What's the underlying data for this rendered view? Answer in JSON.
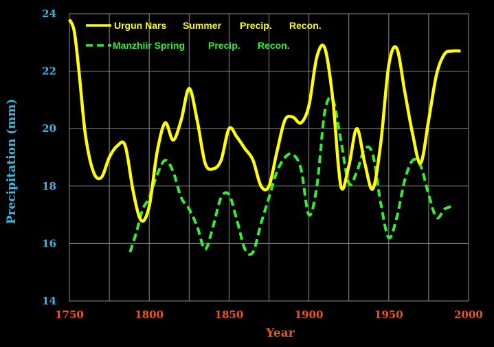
{
  "chart_data": {
    "type": "line",
    "xlabel": "Year",
    "ylabel": "Precipitation (mm)",
    "xlim": [
      1750,
      2000
    ],
    "ylim": [
      14,
      24
    ],
    "xticks": [
      1750,
      1800,
      1850,
      1900,
      1950,
      2000
    ],
    "yticks": [
      14,
      16,
      18,
      20,
      22,
      24
    ],
    "grid": true,
    "legend_position": "top-left",
    "colors": {
      "background": "#000000",
      "grid": "#8c8c8c",
      "tick_x": "#e8581e",
      "tick_y": "#37b8e6",
      "xlabel": "#e8581e",
      "ylabel": "#37b8e6"
    },
    "series": [
      {
        "legend_label_parts": [
          "Urgun Nars",
          "Summer",
          "Precip.",
          "Recon."
        ],
        "color": "#ffff00",
        "style": "solid",
        "x": [
          1750,
          1753,
          1756,
          1760,
          1765,
          1770,
          1775,
          1780,
          1785,
          1790,
          1795,
          1800,
          1805,
          1810,
          1815,
          1820,
          1825,
          1830,
          1835,
          1840,
          1845,
          1850,
          1855,
          1860,
          1865,
          1870,
          1875,
          1880,
          1885,
          1890,
          1895,
          1900,
          1905,
          1910,
          1915,
          1920,
          1925,
          1930,
          1935,
          1940,
          1945,
          1950,
          1955,
          1960,
          1965,
          1970,
          1975,
          1980,
          1985,
          1990,
          1995
        ],
        "values": [
          23.8,
          23.4,
          22.0,
          19.8,
          18.5,
          18.3,
          19.0,
          19.4,
          19.4,
          17.8,
          16.8,
          17.3,
          19.2,
          20.2,
          19.6,
          20.3,
          21.4,
          20.3,
          18.8,
          18.6,
          18.9,
          20.0,
          19.7,
          19.3,
          18.9,
          18.0,
          18.0,
          19.2,
          20.3,
          20.4,
          20.2,
          20.8,
          22.5,
          22.8,
          21.0,
          18.0,
          18.7,
          20.0,
          18.8,
          17.9,
          19.5,
          22.2,
          22.8,
          21.3,
          19.8,
          18.8,
          20.3,
          21.9,
          22.6,
          22.7,
          22.7
        ]
      },
      {
        "legend_label_parts": [
          "Manzhiir Spring",
          "Precip.",
          "Recon."
        ],
        "color": "#33ee33",
        "style": "dashed",
        "x": [
          1788,
          1792,
          1796,
          1800,
          1805,
          1810,
          1815,
          1820,
          1825,
          1830,
          1835,
          1840,
          1845,
          1850,
          1855,
          1860,
          1865,
          1870,
          1875,
          1880,
          1885,
          1890,
          1895,
          1900,
          1905,
          1910,
          1915,
          1920,
          1925,
          1930,
          1935,
          1940,
          1945,
          1950,
          1955,
          1960,
          1965,
          1970,
          1975,
          1980,
          1985,
          1990
        ],
        "values": [
          15.7,
          16.4,
          17.2,
          17.6,
          18.4,
          18.9,
          18.5,
          17.6,
          17.2,
          16.6,
          15.8,
          16.6,
          17.6,
          17.7,
          16.8,
          15.8,
          15.7,
          16.7,
          17.6,
          18.5,
          19.0,
          19.1,
          18.6,
          17.0,
          18.0,
          20.6,
          21.0,
          19.6,
          18.1,
          18.5,
          19.3,
          19.1,
          17.4,
          16.2,
          16.9,
          18.2,
          18.9,
          18.7,
          17.7,
          16.9,
          17.2,
          17.3
        ]
      }
    ]
  }
}
